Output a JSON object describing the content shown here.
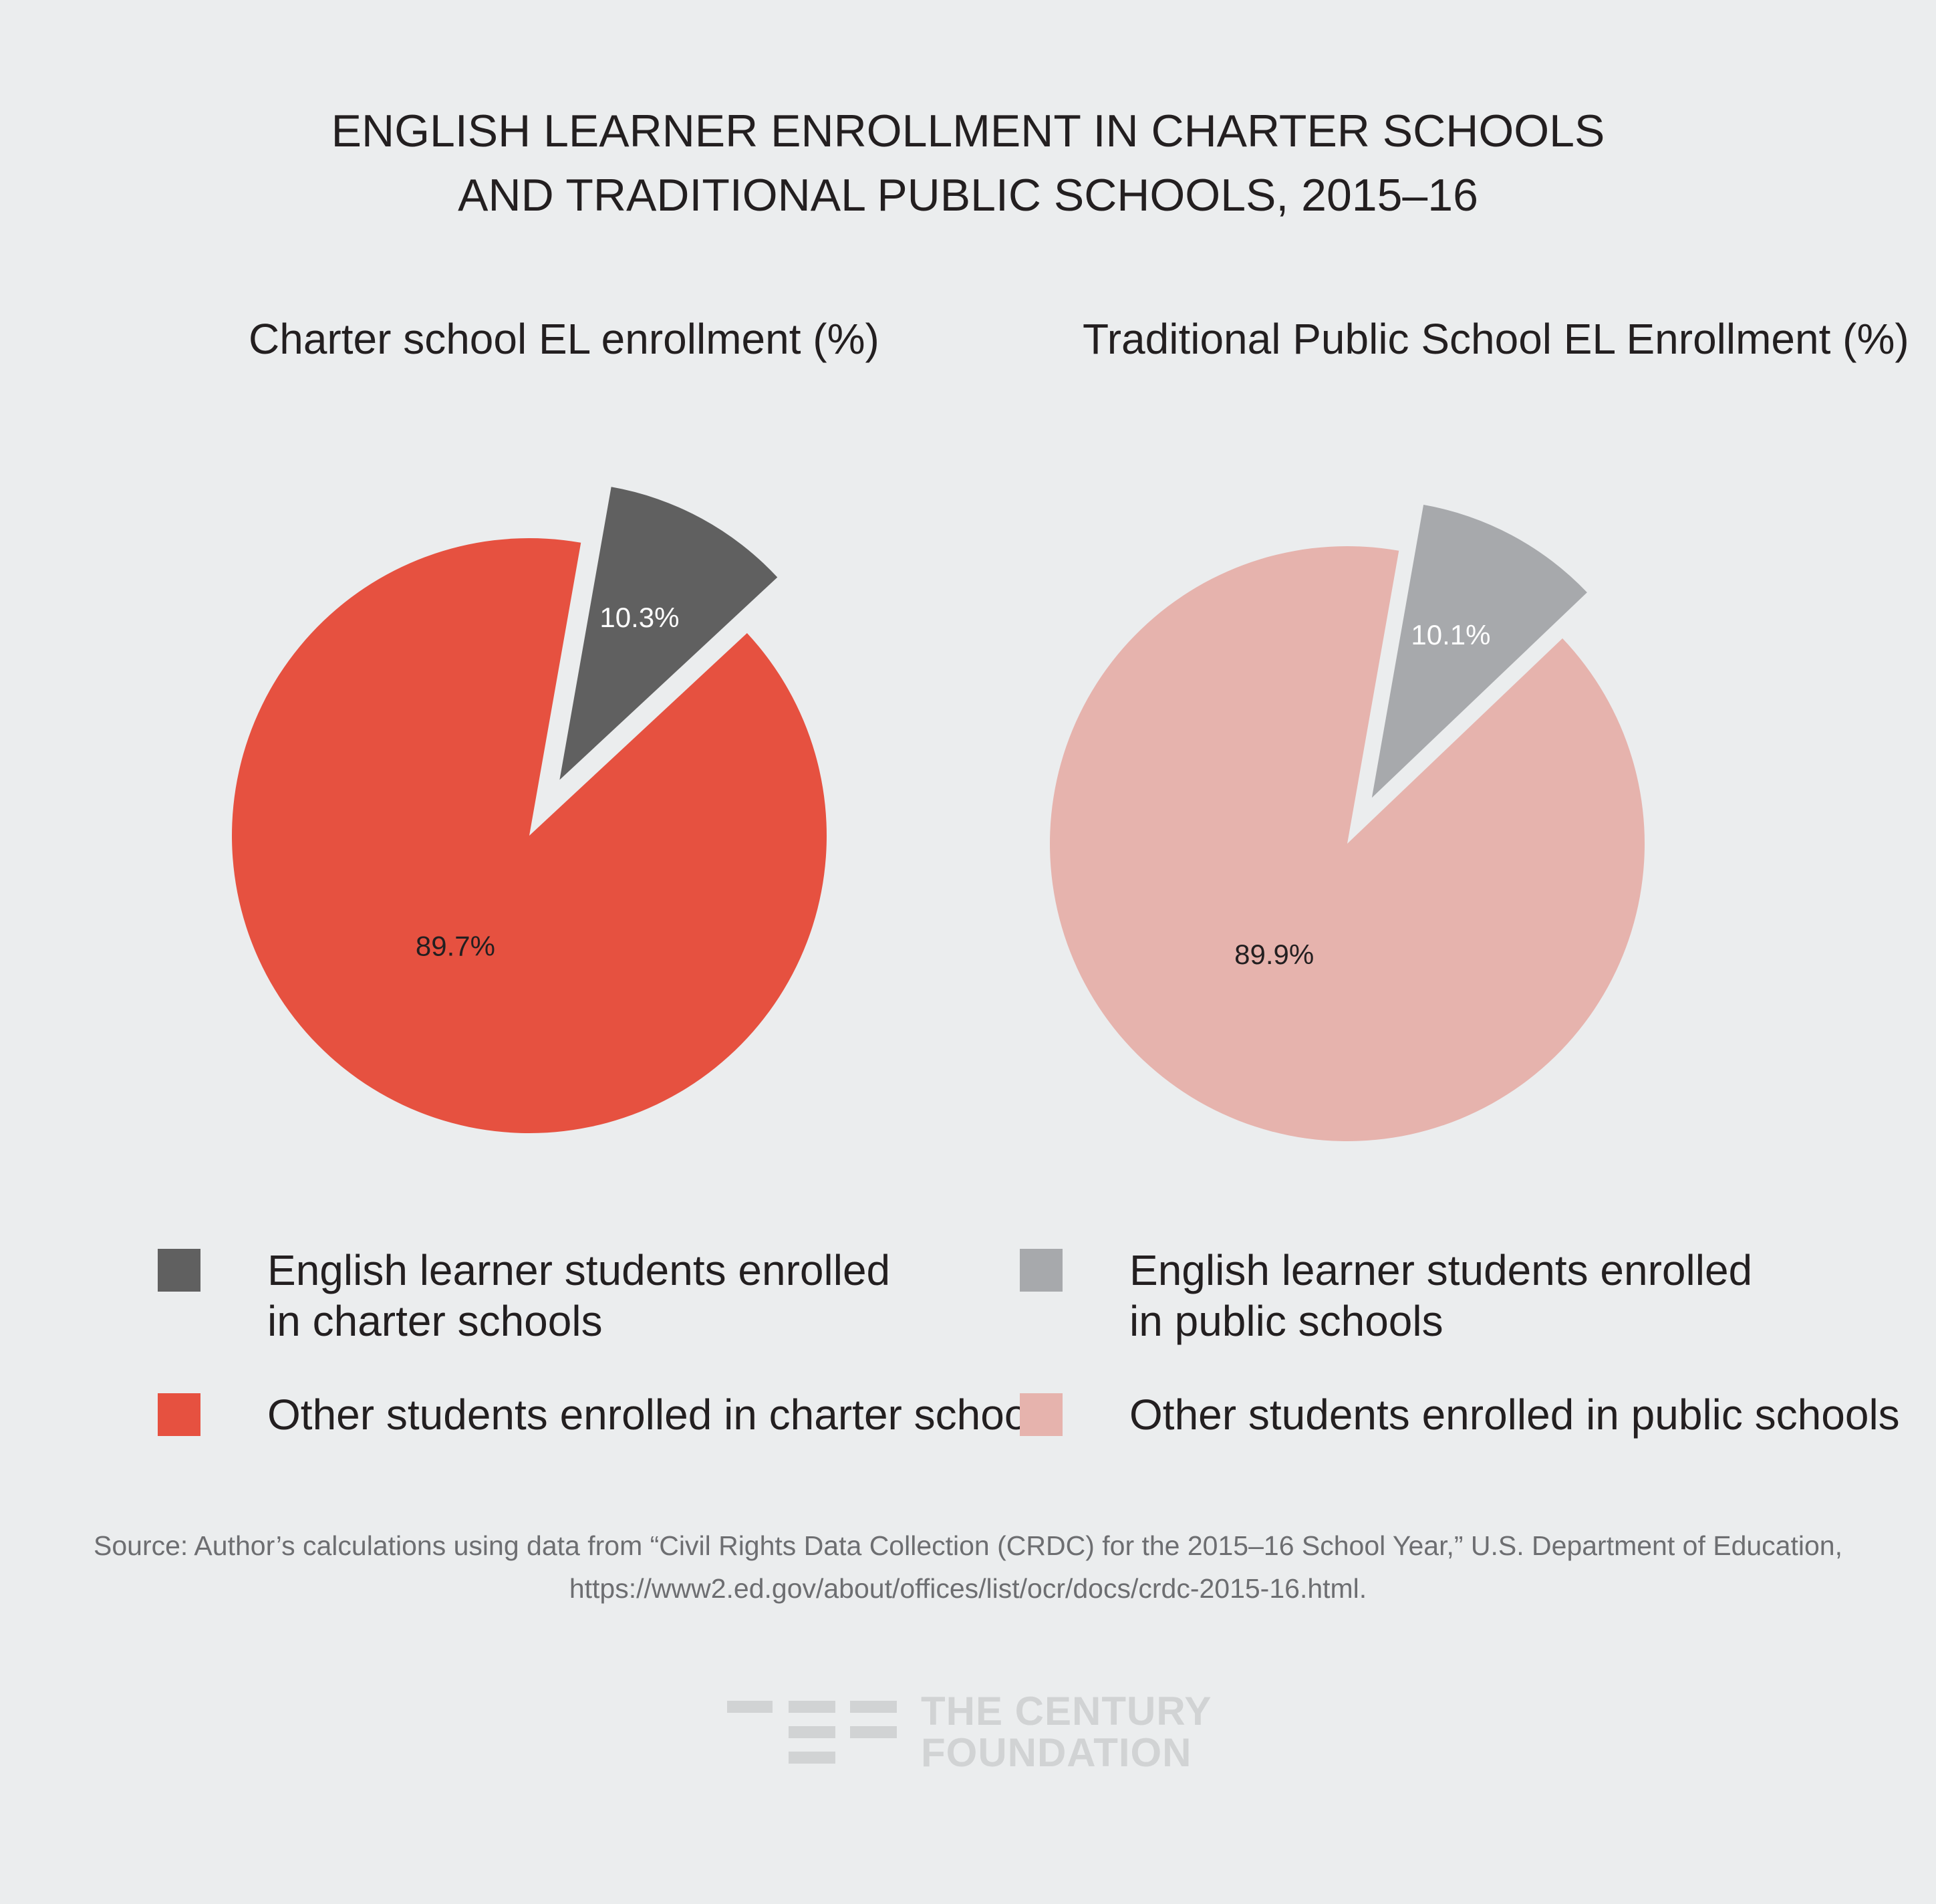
{
  "title": {
    "line1": "ENGLISH LEARNER ENROLLMENT IN CHARTER SCHOOLS",
    "line2": "AND TRADITIONAL PUBLIC SCHOOLS, 2015–16"
  },
  "chart_data": [
    {
      "type": "pie",
      "title": "Charter school EL enrollment (%)",
      "slices": [
        {
          "label": "English learner students enrolled in charter schools",
          "value": 10.3,
          "display": "10.3%",
          "color": "#606060",
          "exploded": true
        },
        {
          "label": "Other students enrolled in charter schools",
          "value": 89.7,
          "display": "89.7%",
          "color": "#e65140",
          "exploded": false
        }
      ]
    },
    {
      "type": "pie",
      "title": "Traditional Public School EL Enrollment (%)",
      "slices": [
        {
          "label": "English learner students enrolled in public schools",
          "value": 10.1,
          "display": "10.1%",
          "color": "#a7a9ac",
          "exploded": true
        },
        {
          "label": "Other students enrolled in public schools",
          "value": 89.9,
          "display": "89.9%",
          "color": "#e6b3ad",
          "exploded": false
        }
      ]
    }
  ],
  "legend": {
    "left": [
      {
        "label": "English learner students enrolled\nin charter schools",
        "color": "#606060"
      },
      {
        "label": "Other students enrolled in charter schools",
        "color": "#e65140"
      }
    ],
    "right": [
      {
        "label": "English learner students enrolled\nin public schools",
        "color": "#a7a9ac"
      },
      {
        "label": "Other students enrolled in public schools",
        "color": "#e6b3ad"
      }
    ]
  },
  "source": {
    "line1": "Source: Author’s calculations using data from “Civil Rights Data Collection (CRDC) for the 2015–16 School Year,” U.S. Department of Education,",
    "line2": "https://www2.ed.gov/about/offices/list/ocr/docs/crdc-2015-16.html."
  },
  "logo": {
    "line1": "THE CENTURY",
    "line2": "FOUNDATION"
  }
}
